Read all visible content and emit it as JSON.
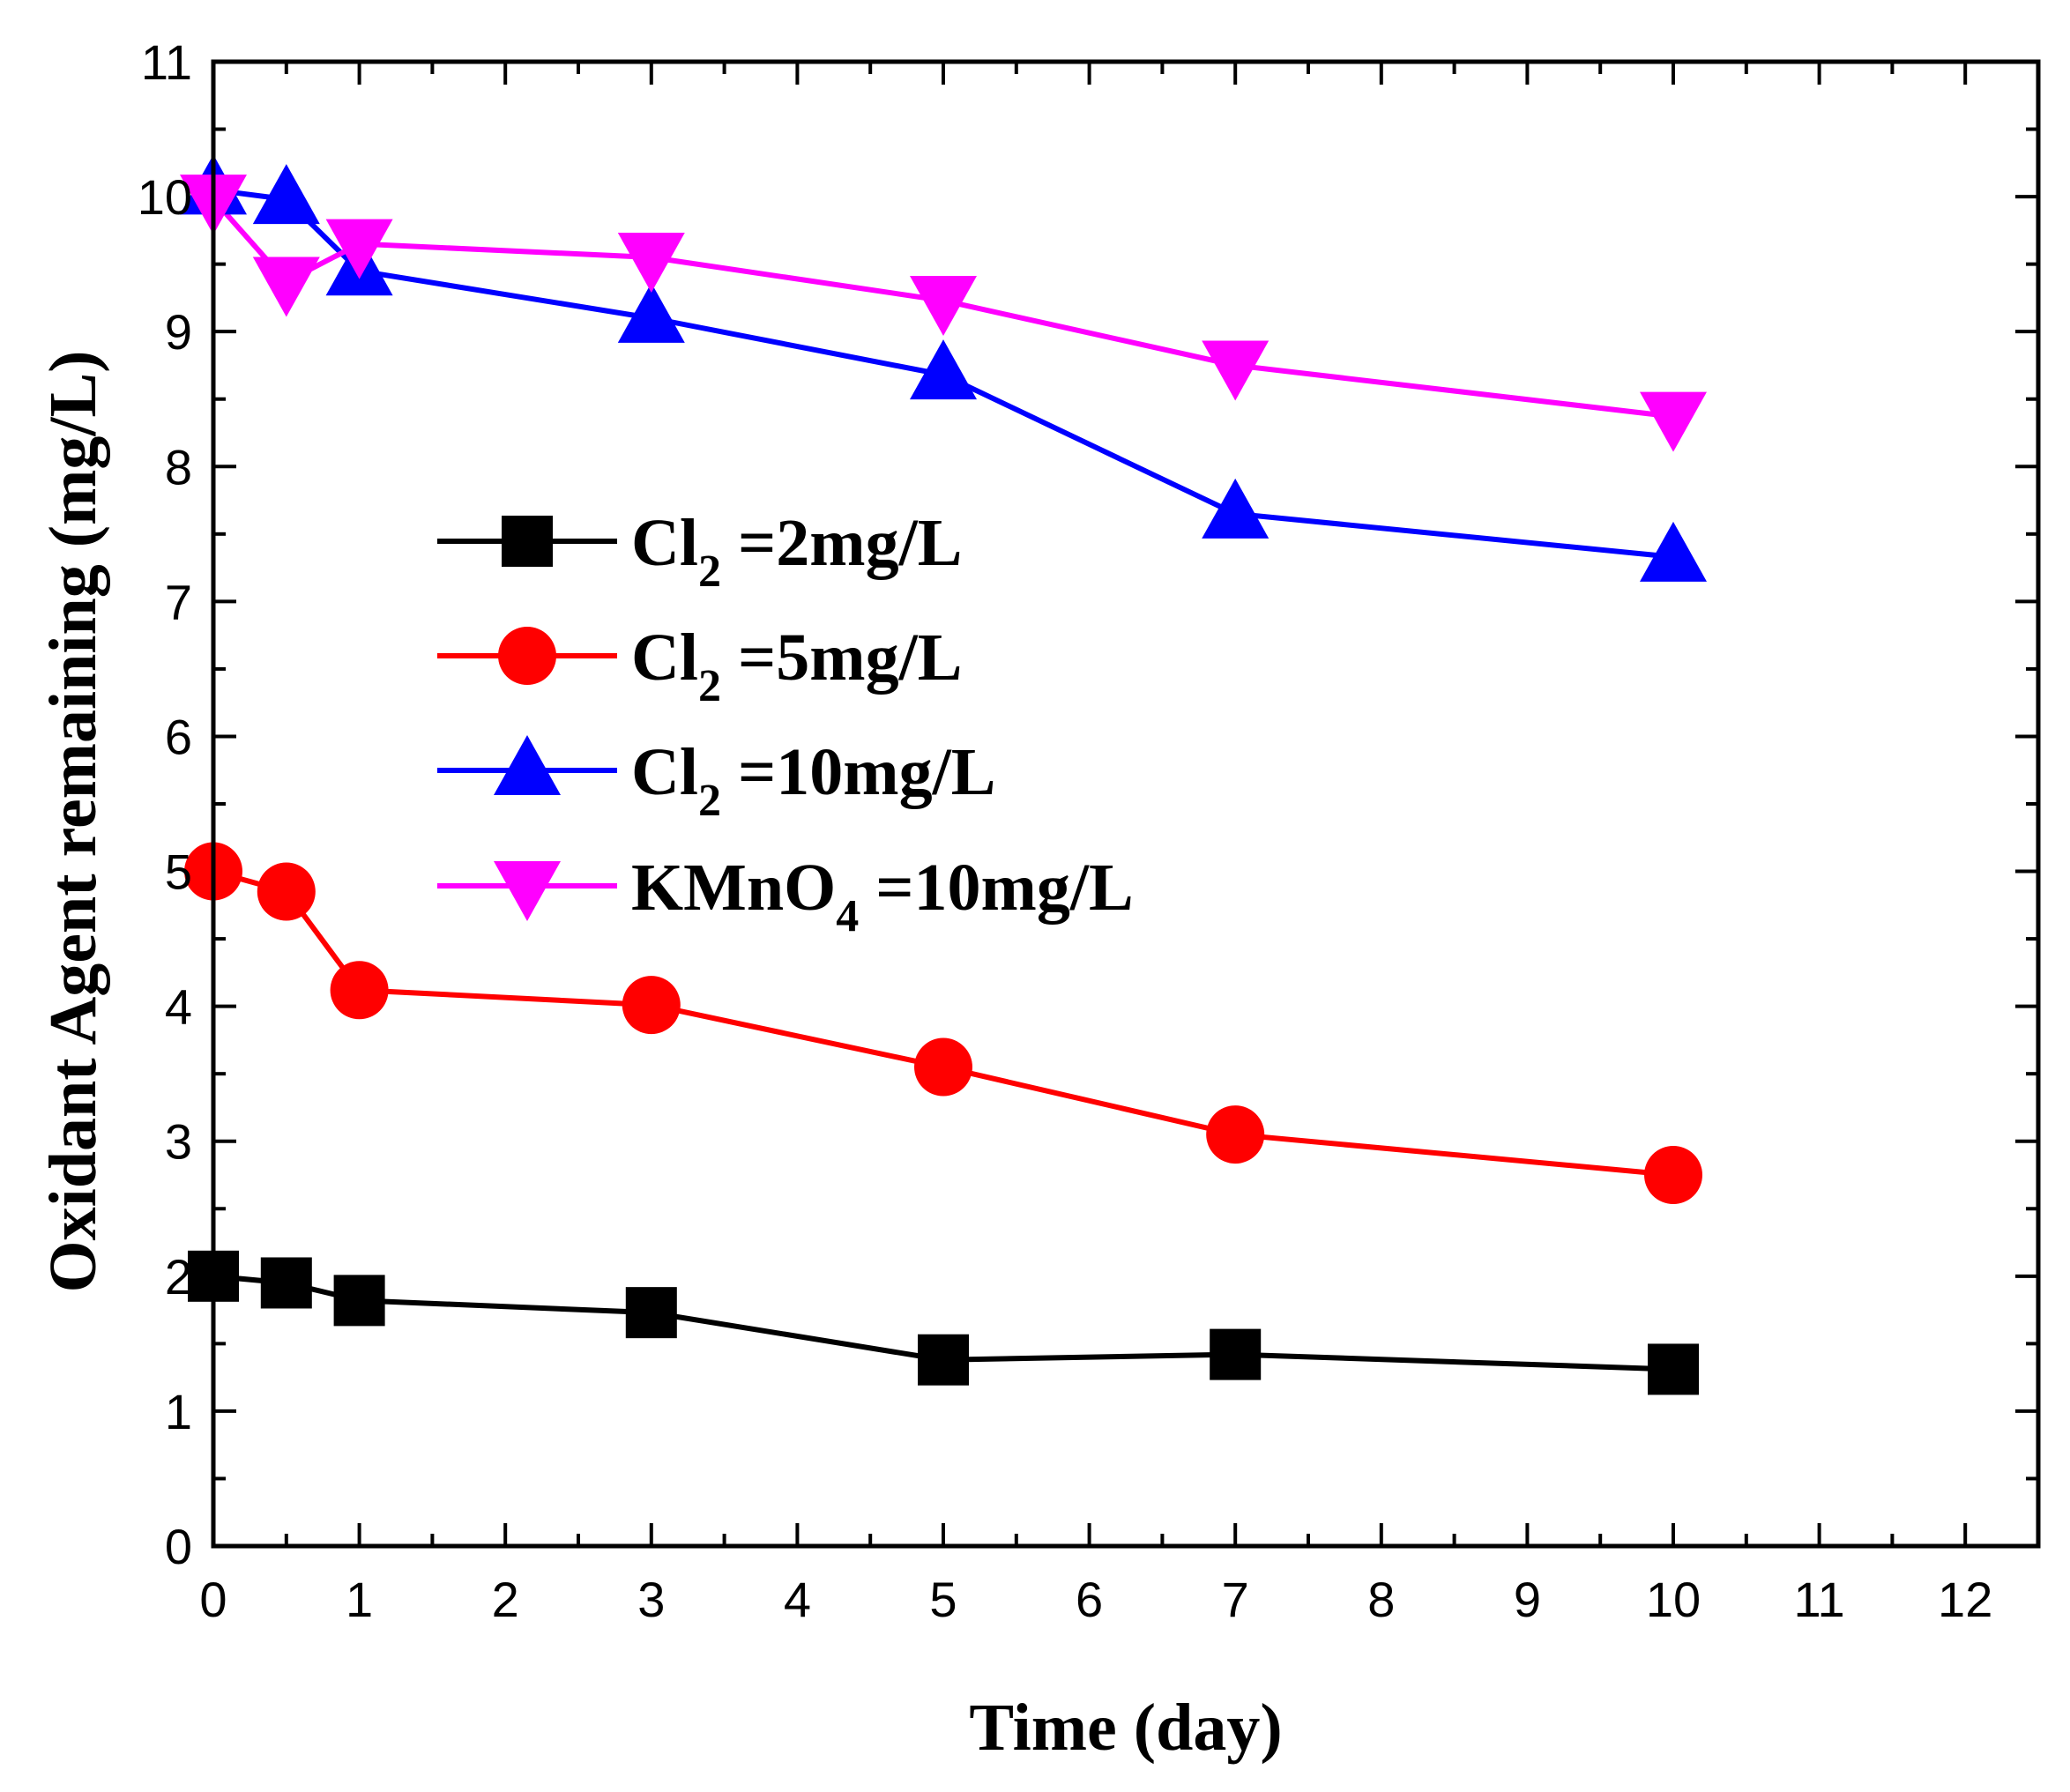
{
  "chart_data": {
    "type": "line",
    "title": "",
    "xlabel": "Time (day)",
    "ylabel": "Oxidant Agent remaining (mg/L)",
    "xlim": [
      0,
      12.5
    ],
    "ylim": [
      0,
      11
    ],
    "xticks": [
      "0",
      "1",
      "2",
      "3",
      "4",
      "5",
      "6",
      "7",
      "8",
      "9",
      "10",
      "11",
      "12"
    ],
    "yticks": [
      "0",
      "1",
      "2",
      "3",
      "4",
      "5",
      "6",
      "7",
      "8",
      "9",
      "10",
      "11"
    ],
    "grid": false,
    "legend_position": "center-left",
    "x": [
      0,
      0.5,
      1,
      3,
      5,
      7,
      10
    ],
    "series": [
      {
        "name": "Cl2 =2mg/L",
        "legend_parts": [
          "Cl",
          "2",
          " =2mg/L"
        ],
        "marker": "square",
        "color": "#000000",
        "values": [
          2.0,
          1.95,
          1.82,
          1.73,
          1.38,
          1.42,
          1.31
        ]
      },
      {
        "name": "Cl2 =5mg/L",
        "legend_parts": [
          "Cl",
          "2",
          " =5mg/L"
        ],
        "marker": "circle",
        "color": "#ff0000",
        "values": [
          5.0,
          4.85,
          4.12,
          4.01,
          3.55,
          3.05,
          2.75
        ]
      },
      {
        "name": "Cl2 =10mg/L",
        "legend_parts": [
          "Cl",
          "2",
          " =10mg/L"
        ],
        "marker": "triangle-up",
        "color": "#0000ff",
        "values": [
          10.05,
          9.98,
          9.45,
          9.1,
          8.68,
          7.65,
          7.33
        ]
      },
      {
        "name": "KMnO4 =10mg/L",
        "legend_parts": [
          "KMnO",
          "4",
          " =10mg/L"
        ],
        "marker": "triangle-down",
        "color": "#ff00ff",
        "values": [
          9.98,
          9.37,
          9.65,
          9.55,
          9.23,
          8.75,
          8.37
        ]
      }
    ]
  }
}
